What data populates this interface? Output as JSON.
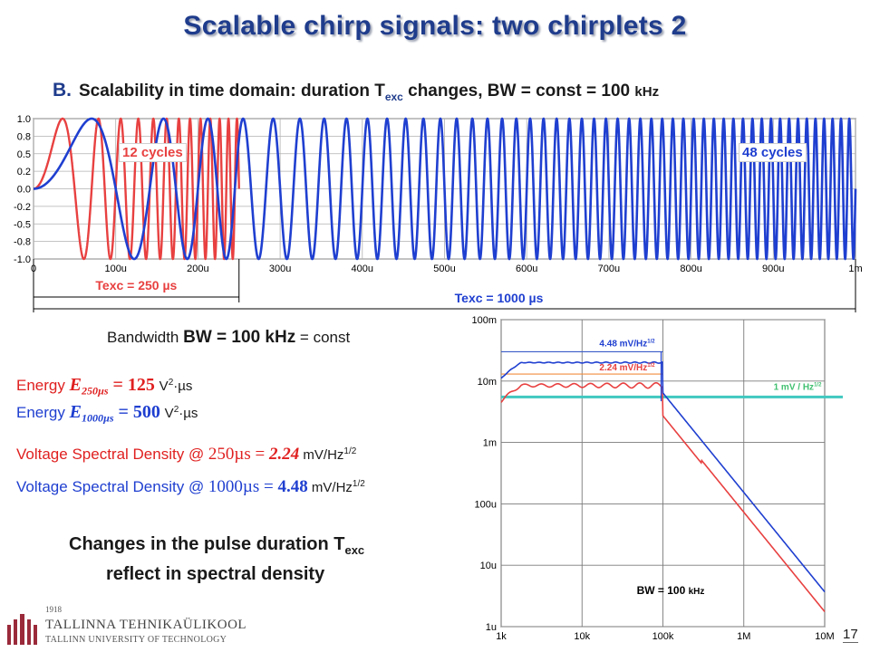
{
  "title": "Scalable chirp signals: two chirplets 2",
  "subtitle": {
    "prefix": "B.",
    "text1": "Scalability in time domain: duration T",
    "sub": "exc",
    "text2": " changes,  BW = const = 100 ",
    "unit": "kHz"
  },
  "top_chart": {
    "y_ticks": [
      "1.0",
      "0.8",
      "0.5",
      "0.2",
      "0.0",
      "-0.2",
      "-0.5",
      "-0.8",
      "-1.0"
    ],
    "x_ticks": [
      "0",
      "100u",
      "200u",
      "300u",
      "400u",
      "500u",
      "600u",
      "700u",
      "800u",
      "900u",
      "1m"
    ],
    "label_red": "12 cycles",
    "label_blue": "48 cycles",
    "texc_short": "Texc = 250 µs",
    "texc_long": "Texc = 1000 µs",
    "colors": {
      "red": "#e84040",
      "blue": "#1f3fd0"
    }
  },
  "chart_data": [
    {
      "type": "line",
      "series": [
        {
          "name": "12 cycles",
          "color": "#e84040",
          "duration": 0.00025,
          "cycles": 12,
          "f_start": 0,
          "f_end": 100000
        },
        {
          "name": "48 cycles",
          "color": "#1f3fd0",
          "duration": 0.001,
          "cycles": 48,
          "f_start": 0,
          "f_end": 100000
        }
      ],
      "xlim": [
        0,
        0.001
      ],
      "ylim": [
        -1.0,
        1.0
      ]
    },
    {
      "type": "line",
      "x_scale": "log",
      "y_scale": "log",
      "xlim": [
        1000,
        10000000
      ],
      "ylim": [
        1e-06,
        0.1
      ],
      "x_ticks": [
        "1k",
        "10k",
        "100k",
        "1M",
        "10M"
      ],
      "y_ticks": [
        "100m",
        "10m",
        "1m",
        "100u",
        "10u",
        "1u"
      ],
      "series": [
        {
          "name": "Texc = 1000 µs",
          "color": "#1f3fd0",
          "plateau": 0.02,
          "ripple": 0.06
        },
        {
          "name": "Texc = 250 µs",
          "color": "#e84040",
          "plateau": 0.0085,
          "ripple": 0.13
        }
      ],
      "reference_lines": [
        {
          "label": "4.48 mV/Hz",
          "sup": "1/2",
          "value": 0.03,
          "color": "#3a5cc8"
        },
        {
          "label": "2.24 mV/Hz",
          "sup": "1/2",
          "value": 0.013,
          "color": "#f08c3c"
        },
        {
          "label": "1 mV / Hz",
          "sup": "1/2",
          "value": 0.0055,
          "color": "#40c8c0"
        }
      ],
      "cutoff": 100000,
      "bw_label": "BW = 100 ",
      "bw_unit": "kHz"
    }
  ],
  "left_text": {
    "bandwidth_pre": "Bandwidth ",
    "bandwidth_bold": "BW = 100 kHz",
    "bandwidth_post": " = const",
    "energy1_label": "Energy  ",
    "energy1_sym": "E",
    "energy1_sub": "250µs",
    "energy1_val": " = 125",
    "energy1_unit": "V",
    "energy1_unit_rest": "·µs",
    "energy2_label": "Energy  ",
    "energy2_sym": "E",
    "energy2_sub": "1000µs",
    "energy2_val": " = 500",
    "energy2_unit": "V",
    "energy2_unit_rest": "·µs",
    "unit_sup": "2",
    "vsd1_pre": "Voltage Spectral Density  @ ",
    "vsd1_at": "250µs",
    "vsd1_eq": " = ",
    "vsd1_val": "2.24",
    "vsd1_unit": " mV/",
    "vsd1_unit2": "Hz",
    "vsd2_pre": "Voltage Spectral Density  @ ",
    "vsd2_at": "1000µs",
    "vsd2_eq": " = ",
    "vsd2_val": "4.48",
    "vsd2_unit": " mV/",
    "vsd2_unit2": "Hz",
    "hz_sup": "1/2",
    "changes_line1": "Changes in the pulse duration T",
    "changes_sub": "exc",
    "changes_line2": "reflect in spectral density"
  },
  "logo": {
    "year": "1918",
    "name": "TALLINNA TEHNIKAÜLIKOOL",
    "name_en": "TALLINN UNIVERSITY OF TECHNOLOGY"
  },
  "page_number": "17"
}
